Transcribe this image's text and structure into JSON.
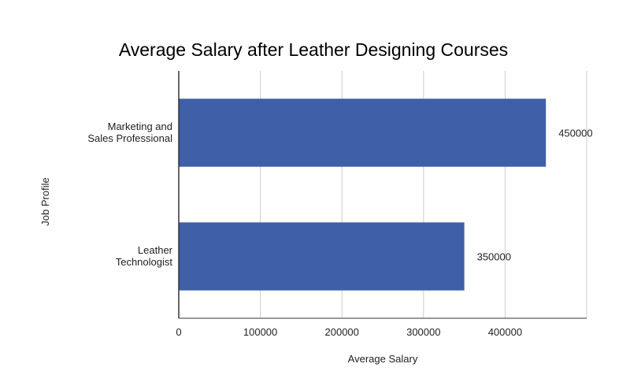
{
  "chart_data": {
    "type": "bar",
    "orientation": "horizontal",
    "title": "Average Salary after Leather Designing Courses",
    "xlabel": "Average Salary",
    "ylabel": "Job Profile",
    "categories": [
      [
        "Marketing and",
        "Sales Professional"
      ],
      [
        "Leather",
        "Technologist"
      ]
    ],
    "values": [
      450000,
      350000
    ],
    "data_labels": [
      "450000",
      "350000"
    ],
    "xlim": [
      0,
      500000
    ],
    "x_ticks": [
      0,
      100000,
      200000,
      300000,
      400000
    ],
    "x_tick_labels": [
      "0",
      "100000",
      "200000",
      "300000",
      "400000"
    ],
    "grid": true,
    "legend": "none",
    "colors": {
      "bar": "#3f5fa8",
      "grid": "#cccccc",
      "axis": "#333333"
    }
  }
}
